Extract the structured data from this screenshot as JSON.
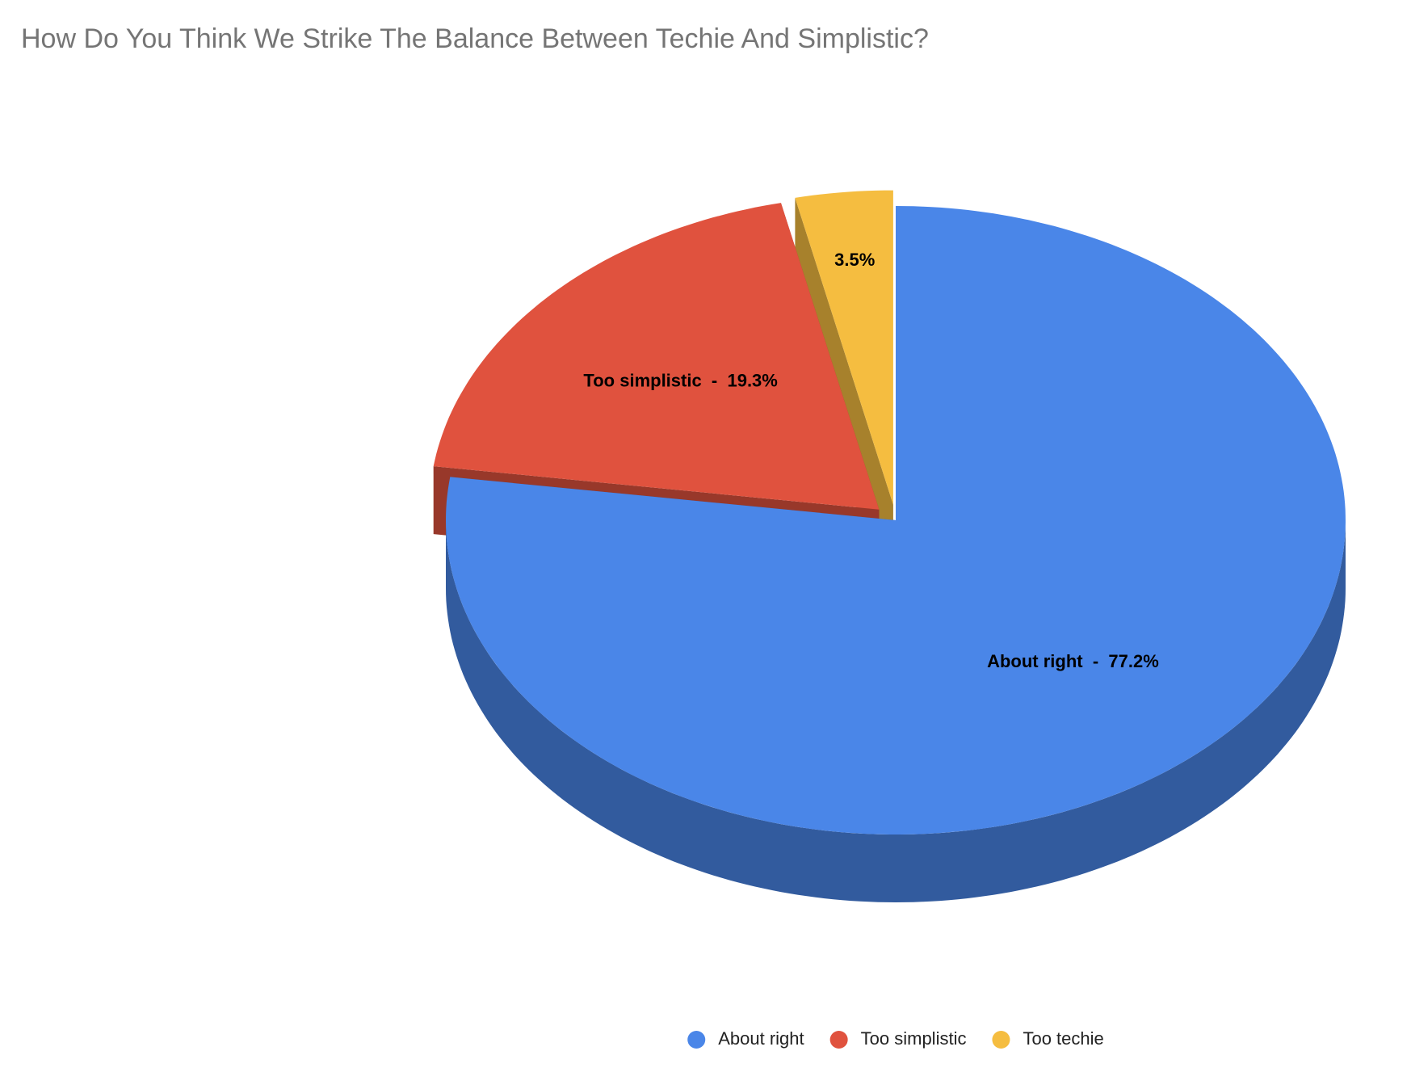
{
  "chart_data": {
    "type": "pie3d",
    "title": "How Do You Think We Strike The Balance Between Techie And Simplistic?",
    "categories": [
      "About right",
      "Too simplistic",
      "Too techie"
    ],
    "values": [
      77.2,
      19.3,
      3.5
    ],
    "value_labels": [
      "About right  -  77.2%",
      "Too simplistic  -  19.3%",
      "3.5%"
    ],
    "colors": [
      "#4a86e8",
      "#e0523e",
      "#f5bd40"
    ],
    "exploded": [
      false,
      true,
      true
    ],
    "legend": "bottom"
  }
}
